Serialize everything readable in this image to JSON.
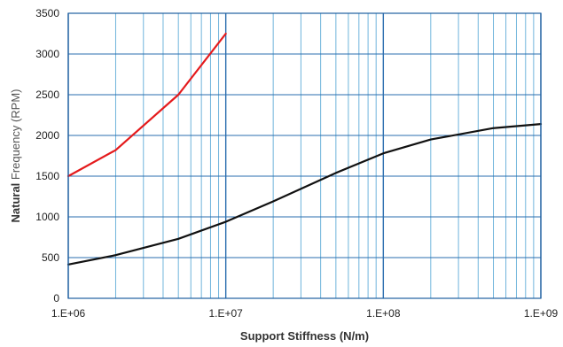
{
  "chart_data": {
    "type": "line",
    "xscale": "log",
    "xlim": [
      1000000,
      1000000000
    ],
    "ylim": [
      0,
      3500
    ],
    "yticks": [
      0,
      500,
      1000,
      1500,
      2000,
      2500,
      3000,
      3500
    ],
    "ytick_labels": [
      "0",
      "500",
      "1000",
      "1500",
      "2000",
      "2500",
      "3000",
      "3500"
    ],
    "xticks": [
      1000000,
      10000000,
      100000000,
      1000000000
    ],
    "xtick_labels": [
      "1.E+06",
      "1.E+07",
      "1.E+08",
      "1.E+09"
    ],
    "xlabel": "Support Stiffness (N/m)",
    "ylabel_bold": "Natural",
    "ylabel_rest": " Frequency (RPM)",
    "grid": true,
    "legend": "none",
    "colors": {
      "grid_minor": "#6FB4DC",
      "grid_major": "#2A6DAF",
      "frame": "#1F5F9F"
    },
    "series": [
      {
        "color": "#E41A1C",
        "x": [
          1000000,
          2000000,
          5000000,
          10000000
        ],
        "y": [
          1500,
          1820,
          2500,
          3250
        ]
      },
      {
        "color": "#111111",
        "x": [
          1000000,
          2000000,
          5000000,
          10000000,
          20000000,
          50000000,
          100000000,
          200000000,
          500000000,
          1000000000
        ],
        "y": [
          415,
          530,
          730,
          940,
          1190,
          1540,
          1780,
          1950,
          2090,
          2140
        ]
      }
    ]
  }
}
